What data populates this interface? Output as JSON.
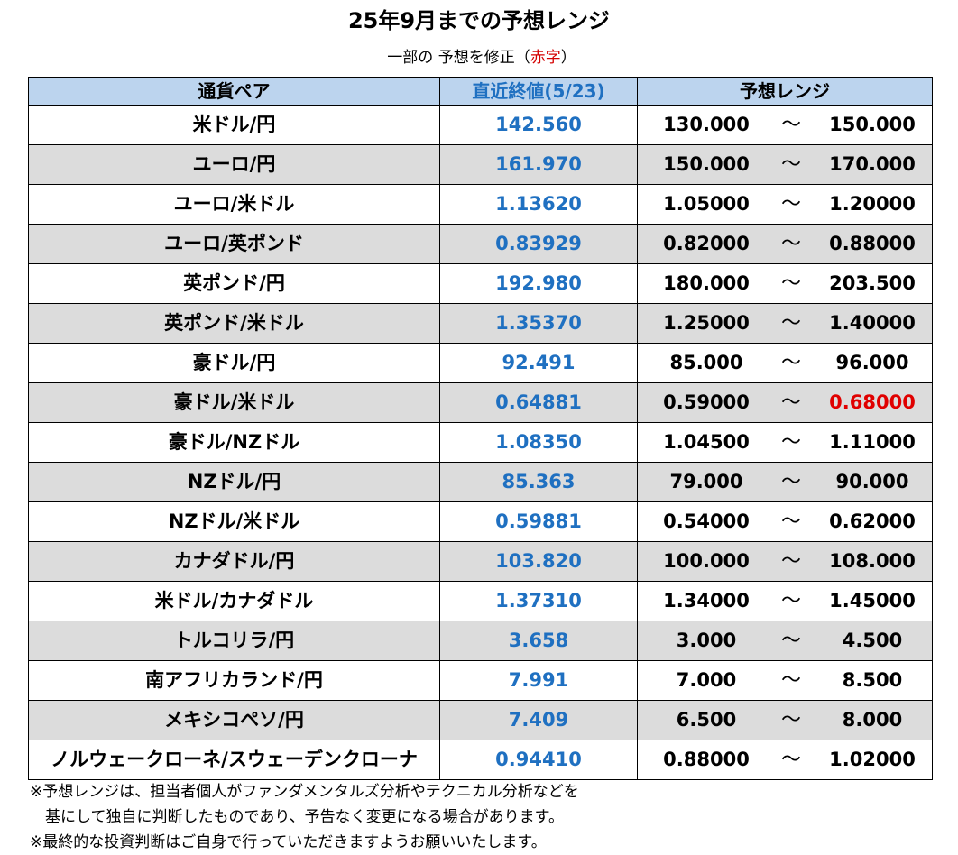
{
  "title": "25年9月までの予想レンジ",
  "subtitle": {
    "prefix": "一部の 予想を修正（",
    "red": "赤字",
    "suffix": "）"
  },
  "headers": {
    "pair": "通貨ペア",
    "latest": "直近終値(5/23)",
    "range": "予想レンジ"
  },
  "tilde": "～",
  "rows": [
    {
      "pair": "米ドル/円",
      "latest": "142.560",
      "low": "130.000",
      "high": "150.000",
      "high_revised": false
    },
    {
      "pair": "ユーロ/円",
      "latest": "161.970",
      "low": "150.000",
      "high": "170.000",
      "high_revised": false
    },
    {
      "pair": "ユーロ/米ドル",
      "latest": "1.13620",
      "low": "1.05000",
      "high": "1.20000",
      "high_revised": false
    },
    {
      "pair": "ユーロ/英ポンド",
      "latest": "0.83929",
      "low": "0.82000",
      "high": "0.88000",
      "high_revised": false
    },
    {
      "pair": "英ポンド/円",
      "latest": "192.980",
      "low": "180.000",
      "high": "203.500",
      "high_revised": false
    },
    {
      "pair": "英ポンド/米ドル",
      "latest": "1.35370",
      "low": "1.25000",
      "high": "1.40000",
      "high_revised": false
    },
    {
      "pair": "豪ドル/円",
      "latest": "92.491",
      "low": "85.000",
      "high": "96.000",
      "high_revised": false
    },
    {
      "pair": "豪ドル/米ドル",
      "latest": "0.64881",
      "low": "0.59000",
      "high": "0.68000",
      "high_revised": true
    },
    {
      "pair": "豪ドル/NZドル",
      "latest": "1.08350",
      "low": "1.04500",
      "high": "1.11000",
      "high_revised": false
    },
    {
      "pair": "NZドル/円",
      "latest": "85.363",
      "low": "79.000",
      "high": "90.000",
      "high_revised": false
    },
    {
      "pair": "NZドル/米ドル",
      "latest": "0.59881",
      "low": "0.54000",
      "high": "0.62000",
      "high_revised": false
    },
    {
      "pair": "カナダドル/円",
      "latest": "103.820",
      "low": "100.000",
      "high": "108.000",
      "high_revised": false
    },
    {
      "pair": "米ドル/カナダドル",
      "latest": "1.37310",
      "low": "1.34000",
      "high": "1.45000",
      "high_revised": false
    },
    {
      "pair": "トルコリラ/円",
      "latest": "3.658",
      "low": "3.000",
      "high": "4.500",
      "high_revised": false
    },
    {
      "pair": "南アフリカランド/円",
      "latest": "7.991",
      "low": "7.000",
      "high": "8.500",
      "high_revised": false
    },
    {
      "pair": "メキシコペソ/円",
      "latest": "7.409",
      "low": "6.500",
      "high": "8.000",
      "high_revised": false
    },
    {
      "pair": "ノルウェークローネ/スウェーデンクローナ",
      "latest": "0.94410",
      "low": "0.88000",
      "high": "1.02000",
      "high_revised": false
    }
  ],
  "notes": [
    "※予想レンジは、担当者個人がファンダメンタルズ分析やテクニカル分析などを",
    "　基にして独自に判断したものであり、予告なく変更になる場合があります。",
    "※最終的な投資判断はご自身で行っていただきますようお願いいたします。"
  ],
  "colors": {
    "header_bg": "#bcd4ee",
    "latest_text": "#1f70c1",
    "revised_text": "#e00000",
    "alt_row_bg": "#dcdcdc"
  }
}
